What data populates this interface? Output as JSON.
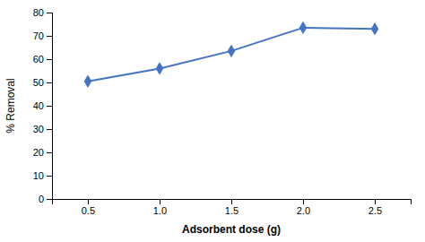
{
  "chart_data": {
    "type": "line",
    "x": [
      0.5,
      1.0,
      1.5,
      2.0,
      2.5
    ],
    "values": [
      50.5,
      56.0,
      63.5,
      73.5,
      73.0
    ],
    "xlabel": "Adsorbent dose (g)",
    "ylabel": "% Removal",
    "xlim": [
      0.25,
      2.75
    ],
    "ylim": [
      0,
      80
    ],
    "xticks": [
      0.5,
      {
        "value": 1.0,
        "label": "1.0"
      },
      1.5,
      {
        "value": 2.0,
        "label": "2.0"
      },
      2.5
    ],
    "yticks": [
      0,
      10,
      20,
      30,
      40,
      50,
      60,
      70,
      80
    ],
    "color": "#4472C4",
    "marker": "diamond",
    "grid": false
  }
}
